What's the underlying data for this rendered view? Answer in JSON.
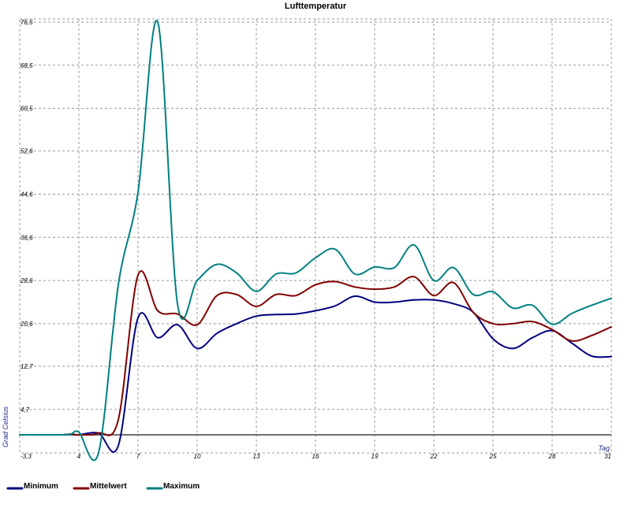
{
  "chart_data": {
    "type": "line",
    "title": "Lufttemperatur",
    "xlabel": "Tag",
    "ylabel": "Grad Celsius",
    "xlim": [
      -3.3,
      31
    ],
    "ylim": [
      -3.3,
      76.5
    ],
    "x_ticks": [
      -3.3,
      4,
      7,
      10,
      13,
      16,
      19,
      22,
      25,
      28,
      31
    ],
    "x_tick_labels": [
      "-3,3",
      "4",
      "7",
      "10",
      "13",
      "16",
      "19",
      "22",
      "25",
      "28",
      "31"
    ],
    "y_ticks": [
      4.7,
      12.7,
      20.6,
      28.6,
      36.6,
      44.6,
      52.6,
      60.5,
      68.5,
      76.5
    ],
    "y_tick_labels": [
      "4,7",
      "12,7",
      "20,6",
      "28,6",
      "36,6",
      "44,6",
      "52,6",
      "60,5",
      "68,5",
      "76,5"
    ],
    "grid": true,
    "legend_position": "bottom",
    "series": [
      {
        "name": "Minimum",
        "color": "#000080",
        "x": [
          1,
          2,
          3,
          4,
          5,
          6,
          7,
          8,
          9,
          10,
          11,
          12,
          13,
          14,
          15,
          16,
          17,
          18,
          19,
          20,
          21,
          22,
          23,
          24,
          25,
          26,
          27,
          28,
          29,
          30,
          31
        ],
        "y": [
          0.0,
          0.0,
          0.1,
          0.0,
          0.3,
          -2.0,
          21.7,
          18.0,
          20.4,
          16.0,
          18.8,
          20.6,
          22.0,
          22.3,
          22.4,
          23.0,
          23.9,
          25.7,
          24.6,
          24.6,
          25.0,
          25.0,
          24.3,
          22.7,
          17.8,
          16.0,
          18.0,
          19.3,
          17.0,
          14.6,
          14.5
        ]
      },
      {
        "name": "Mittelwert",
        "color": "#800000",
        "x": [
          1,
          2,
          3,
          4,
          5,
          6,
          7,
          8,
          9,
          10,
          11,
          12,
          13,
          14,
          15,
          16,
          17,
          18,
          19,
          20,
          21,
          22,
          23,
          24,
          25,
          26,
          27,
          28,
          29,
          30,
          31
        ],
        "y": [
          0.0,
          0.0,
          0.1,
          0.0,
          0.3,
          2.8,
          29.6,
          23.0,
          22.4,
          20.4,
          25.8,
          26.0,
          23.8,
          26.0,
          25.8,
          27.8,
          28.4,
          27.4,
          27.0,
          27.4,
          29.3,
          25.8,
          28.2,
          22.7,
          20.6,
          20.6,
          21.0,
          19.5,
          17.4,
          18.4,
          20.0
        ]
      },
      {
        "name": "Maximum",
        "color": "#008080",
        "x": [
          1,
          2,
          3,
          4,
          5,
          6,
          7,
          8,
          9,
          10,
          11,
          12,
          13,
          14,
          15,
          16,
          17,
          18,
          19,
          20,
          21,
          22,
          23,
          24,
          25,
          26,
          27,
          28,
          29,
          30,
          31
        ],
        "y": [
          0.0,
          0.0,
          0.1,
          0.5,
          -3.3,
          27.8,
          45.0,
          76.5,
          24.3,
          28.6,
          31.6,
          30.0,
          26.6,
          29.8,
          30.0,
          32.8,
          34.4,
          29.8,
          31.1,
          31.0,
          35.2,
          28.6,
          31.0,
          26.0,
          26.5,
          23.5,
          24.0,
          20.5,
          22.5,
          24.0,
          25.3
        ]
      }
    ]
  }
}
